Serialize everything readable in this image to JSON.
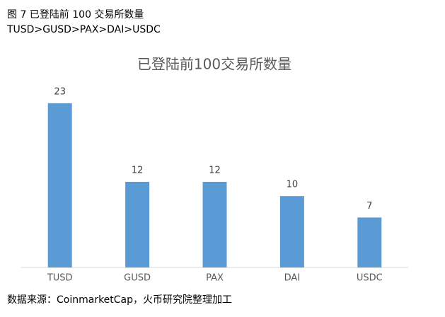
{
  "figure_caption": "图 7 已登陆前 100 交易所数量",
  "figure_subtitle": "TUSD>GUSD>PAX>DAI>USDC",
  "source": "数据来源：CoinmarketCap，火币研究院整理加工",
  "chart_data": {
    "type": "bar",
    "title": "已登陆前100交易所数量",
    "categories": [
      "TUSD",
      "GUSD",
      "PAX",
      "DAI",
      "USDC"
    ],
    "values": [
      23,
      12,
      12,
      10,
      7
    ],
    "color": "#5b9bd5",
    "data_labels": true
  }
}
